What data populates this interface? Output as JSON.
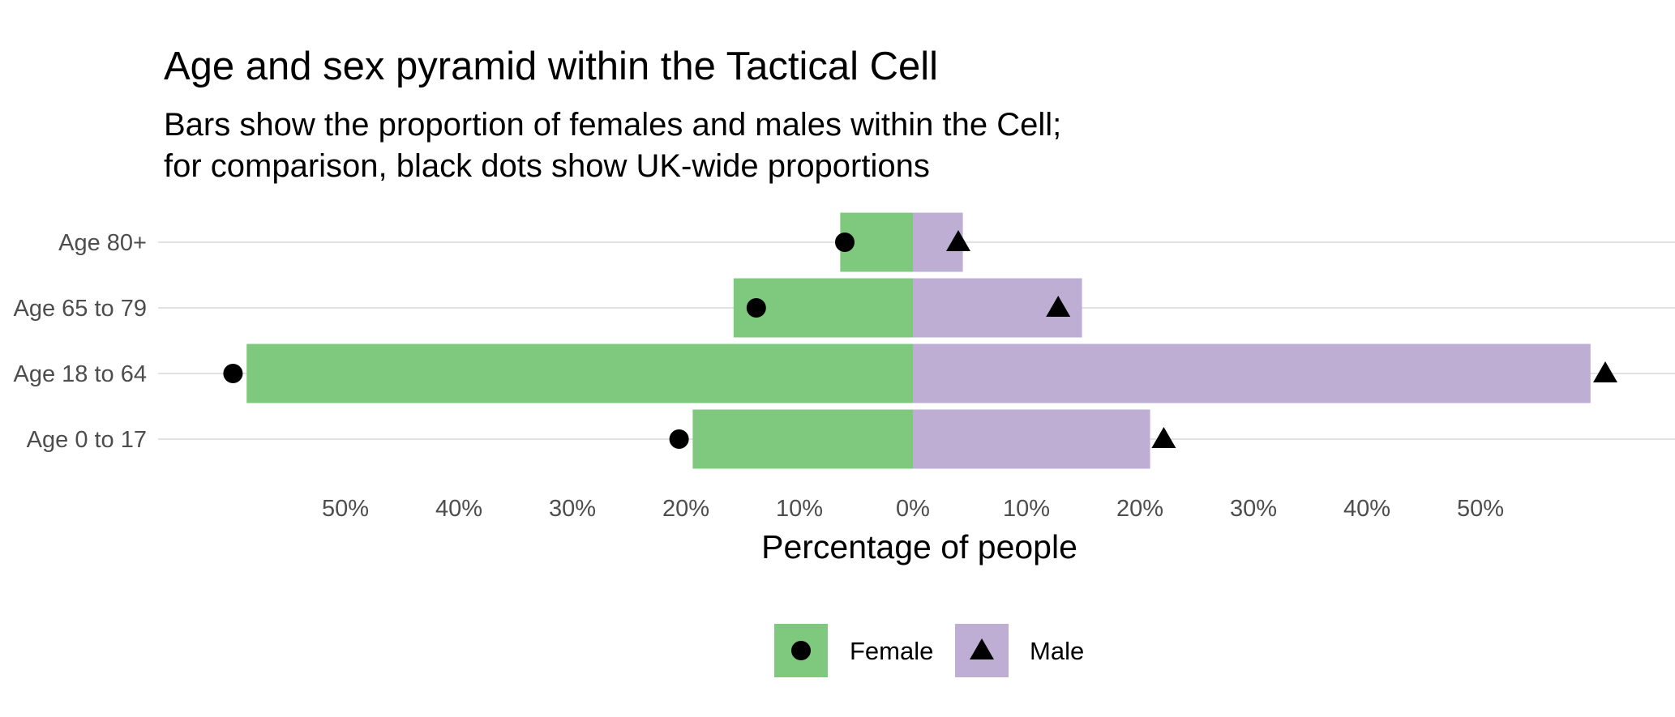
{
  "chart_data": {
    "type": "bar",
    "orientation": "horizontal-pyramid",
    "title": "Age and sex pyramid within the Tactical Cell",
    "subtitle_lines": [
      "Bars show the proportion of females and males within the Cell;",
      "for comparison, black dots show UK-wide proportions"
    ],
    "xlabel": "Percentage of people",
    "ylabel": "",
    "categories": [
      "Age 80+",
      "Age 65 to 79",
      "Age 18 to 64",
      "Age 0 to 17"
    ],
    "xlim": [
      -65,
      65
    ],
    "x_ticks": [
      -50,
      -40,
      -30,
      -20,
      -10,
      0,
      10,
      20,
      30,
      40,
      50
    ],
    "x_tick_labels": [
      "50%",
      "40%",
      "30%",
      "20%",
      "10%",
      "0%",
      "10%",
      "20%",
      "30%",
      "40%",
      "50%"
    ],
    "series": [
      {
        "name": "Female",
        "side": "left",
        "color": "#7fc97f",
        "marker": "circle",
        "values": [
          6.4,
          15.8,
          58.7,
          19.4
        ],
        "uk_values": [
          6.0,
          13.8,
          59.9,
          20.6
        ]
      },
      {
        "name": "Male",
        "side": "right",
        "color": "#beaed4",
        "marker": "triangle",
        "values": [
          4.4,
          14.9,
          59.7,
          20.9
        ],
        "uk_values": [
          4.0,
          12.8,
          61.0,
          22.1
        ]
      }
    ],
    "grid": true,
    "legend": "bottom"
  }
}
